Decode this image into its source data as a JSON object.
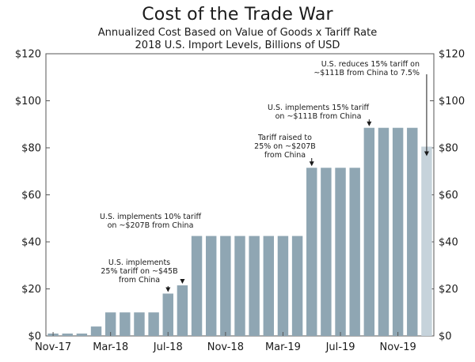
{
  "chart_data": {
    "type": "bar",
    "title": "Cost of the Trade War",
    "subtitle": "Annualized Cost Based on Value of Goods x Tariff Rate",
    "subtitle2": "2018 U.S. Import Levels, Billions of USD",
    "xlabel": "",
    "ylabel": "",
    "ylim": [
      0,
      120
    ],
    "yticks": [
      0,
      20,
      40,
      60,
      80,
      100,
      120
    ],
    "ytick_labels": [
      "$0",
      "$20",
      "$40",
      "$60",
      "$80",
      "$100",
      "$120"
    ],
    "categories": [
      "Nov-17",
      "Dec-17",
      "Jan-18",
      "Feb-18",
      "Mar-18",
      "Apr-18",
      "May-18",
      "Jun-18",
      "Jul-18",
      "Aug-18",
      "Sep-18",
      "Oct-18",
      "Nov-18",
      "Dec-18",
      "Jan-19",
      "Feb-19",
      "Mar-19",
      "Apr-19",
      "May-19",
      "Jun-19",
      "Jul-19",
      "Aug-19",
      "Sep-19",
      "Oct-19",
      "Nov-19",
      "Dec-19",
      "Jan-20"
    ],
    "values": [
      1,
      1,
      1,
      4,
      10,
      10,
      10,
      10,
      18,
      21.5,
      42.5,
      42.5,
      42.5,
      42.5,
      42.5,
      42.5,
      42.5,
      42.5,
      71.5,
      71.5,
      71.5,
      71.5,
      88.5,
      88.5,
      88.5,
      88.5,
      80.5
    ],
    "highlight_index": 26,
    "xtick_labels": [
      {
        "index": 0,
        "label": "Nov-17"
      },
      {
        "index": 4,
        "label": "Mar-18"
      },
      {
        "index": 8,
        "label": "Jul-18"
      },
      {
        "index": 12,
        "label": "Nov-18"
      },
      {
        "index": 16,
        "label": "Mar-19"
      },
      {
        "index": 20,
        "label": "Jul-19"
      },
      {
        "index": 24,
        "label": "Nov-19"
      }
    ],
    "annotations": [
      {
        "index": 8,
        "lines": [
          "U.S. implements",
          "25% tariff on ~$45B",
          "from China"
        ]
      },
      {
        "index": 9,
        "lines": [
          "U.S. implements 10% tariff",
          "on ~$207B from China"
        ]
      },
      {
        "index": 18,
        "lines": [
          "Tariff raised to",
          "25% on ~$207B",
          "from China"
        ]
      },
      {
        "index": 22,
        "lines": [
          "U.S. implements 15% tariff",
          "on ~$111B from China"
        ]
      },
      {
        "index": 26,
        "lines": [
          "U.S. reduces 15% tariff on",
          "~$111B from China to 7.5%"
        ]
      }
    ],
    "colors": {
      "bar": "#8fa6b3",
      "highlight": "#c6d3db",
      "axis": "#555555"
    }
  }
}
